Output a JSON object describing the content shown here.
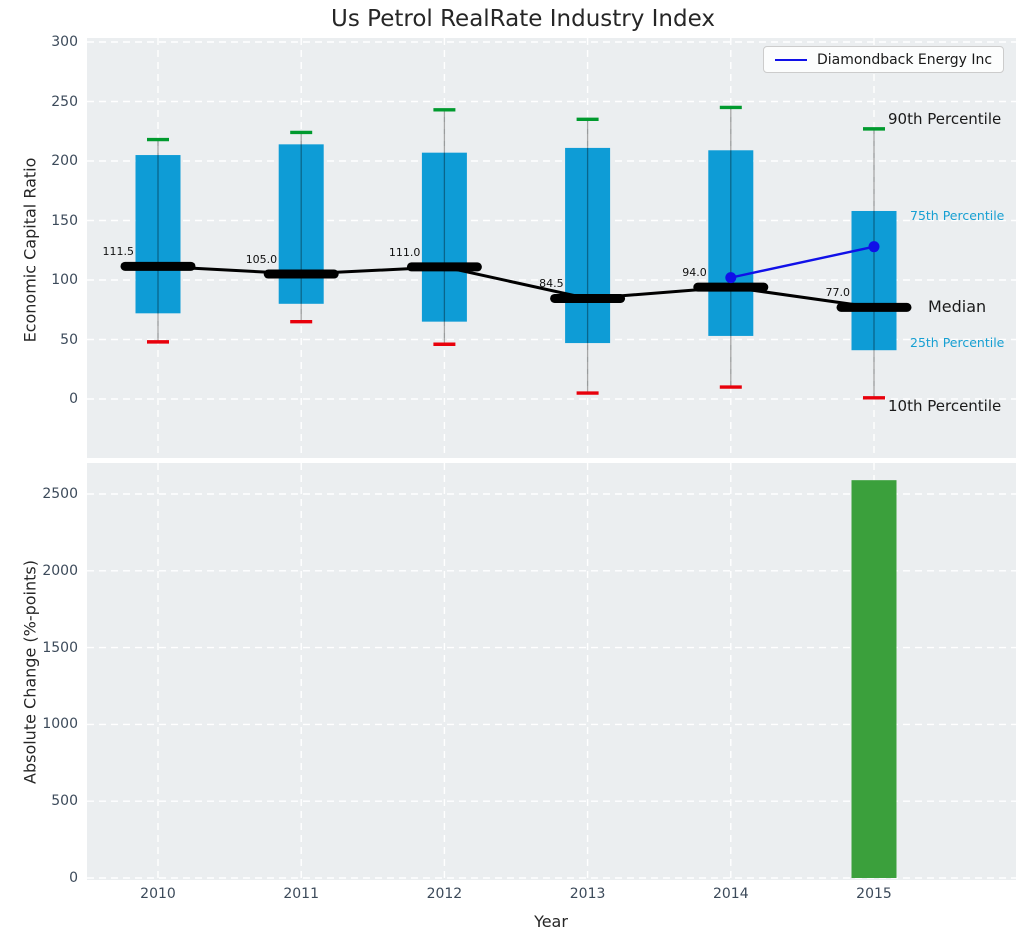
{
  "chart_data": [
    {
      "type": "boxplot",
      "title": "Us Petrol RealRate Industry Index",
      "ylabel": "Economic Capital Ratio",
      "yticks": [
        0,
        50,
        100,
        150,
        200,
        250,
        300
      ],
      "ylim": [
        -50,
        303
      ],
      "grid": true,
      "categories": [
        "2010",
        "2011",
        "2012",
        "2013",
        "2014",
        "2015"
      ],
      "series": {
        "p90": [
          218,
          224,
          243,
          235,
          245,
          227
        ],
        "p75": [
          205,
          214,
          207,
          211,
          209,
          158
        ],
        "median": [
          111.5,
          105.0,
          111.0,
          84.5,
          94.0,
          77.0
        ],
        "p25": [
          72,
          80,
          65,
          47,
          53,
          41
        ],
        "p10": [
          48,
          65,
          46,
          5,
          10,
          1
        ]
      },
      "median_labels": [
        "111.5",
        "105.0",
        "111.0",
        "84.5",
        "94.0",
        "77.0"
      ],
      "overlay_line": {
        "name": "Diamondback Energy Inc",
        "points": [
          {
            "x": "2014",
            "y": 102
          },
          {
            "x": "2015",
            "y": 128
          }
        ]
      },
      "legend": {
        "position": "upper right",
        "entries": [
          {
            "label": "Diamondback Energy Inc",
            "color": "#1010e8"
          }
        ]
      },
      "annotations": {
        "p90": "90th Percentile",
        "p75": "75th Percentile",
        "median": "Median",
        "p25": "25th Percentile",
        "p10": "10th Percentile"
      }
    },
    {
      "type": "bar",
      "ylabel": "Absolute Change (%-points)",
      "xlabel": "Year",
      "yticks": [
        0,
        500,
        1000,
        1500,
        2000,
        2500
      ],
      "ylim": [
        0,
        2700
      ],
      "grid": true,
      "categories": [
        "2010",
        "2011",
        "2012",
        "2013",
        "2014",
        "2015"
      ],
      "values": [
        null,
        null,
        null,
        null,
        null,
        2590
      ]
    }
  ],
  "colors": {
    "box_fill": "#0e9cd6",
    "p90_cap": "#009a2e",
    "p10_cap": "#e8000b",
    "median_line": "#000000",
    "company_line": "#1010e8",
    "change_bar": "#3ba03c",
    "axes_background": "#ebeef0",
    "gridline": "#ffffff",
    "tick_label": "#3c4a5a",
    "percentile_text_accent": "#169fd2"
  }
}
